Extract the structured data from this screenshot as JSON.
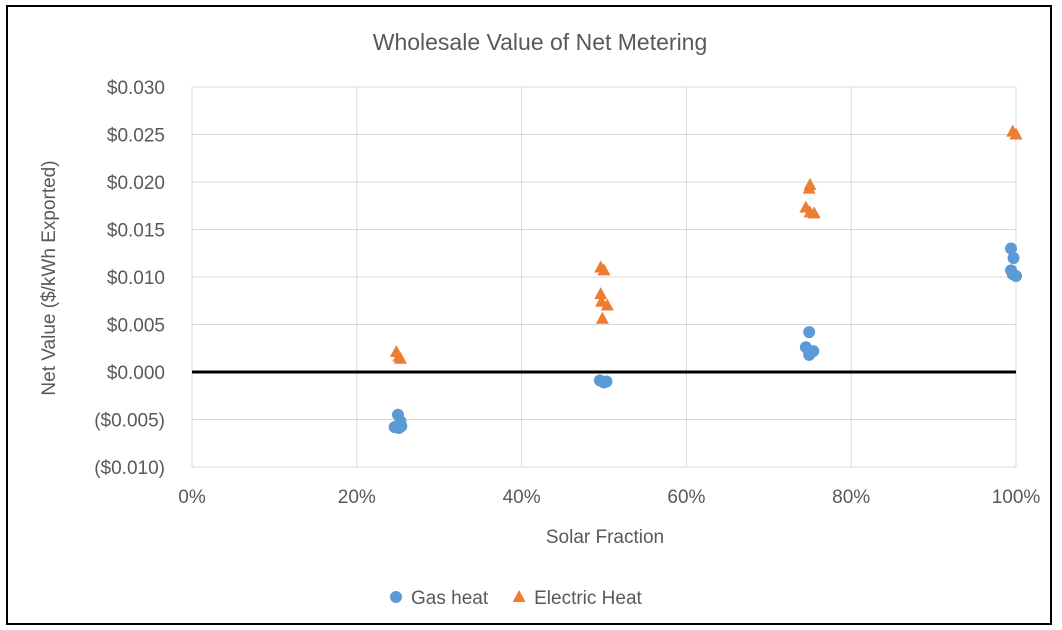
{
  "chart_data": {
    "type": "scatter",
    "title": "Wholesale Value of Net Metering",
    "xlabel": "Solar Fraction",
    "ylabel": "Net Value ($/kWh Exported)",
    "xlim": [
      0,
      1
    ],
    "ylim": [
      -0.01,
      0.03
    ],
    "x_ticks": [
      0,
      0.2,
      0.4,
      0.6,
      0.8,
      1.0
    ],
    "x_tick_labels": [
      "0%",
      "20%",
      "40%",
      "60%",
      "80%",
      "100%"
    ],
    "y_ticks": [
      0.03,
      0.025,
      0.02,
      0.015,
      0.01,
      0.005,
      0.0,
      -0.005,
      -0.01
    ],
    "y_tick_labels": [
      "$0.030",
      "$0.025",
      "$0.020",
      "$0.015",
      "$0.010",
      "$0.005",
      "$0.000",
      "($0.005)",
      "($0.010)"
    ],
    "negative_tick_color": "#ff0000",
    "tick_color": "#595959",
    "grid": true,
    "zero_line": true,
    "legend_position": "bottom",
    "series": [
      {
        "name": "Gas heat",
        "marker": "circle",
        "color": "#5b9bd5",
        "points": [
          {
            "x": 0.25,
            "y": -0.0045
          },
          {
            "x": 0.253,
            "y": -0.0052
          },
          {
            "x": 0.246,
            "y": -0.0058
          },
          {
            "x": 0.251,
            "y": -0.0059
          },
          {
            "x": 0.254,
            "y": -0.0057
          },
          {
            "x": 0.495,
            "y": -0.0009
          },
          {
            "x": 0.5,
            "y": -0.0011
          },
          {
            "x": 0.503,
            "y": -0.001
          },
          {
            "x": 0.749,
            "y": 0.0042
          },
          {
            "x": 0.745,
            "y": 0.0026
          },
          {
            "x": 0.754,
            "y": 0.0022
          },
          {
            "x": 0.749,
            "y": 0.0018
          },
          {
            "x": 0.994,
            "y": 0.013
          },
          {
            "x": 0.997,
            "y": 0.012
          },
          {
            "x": 0.994,
            "y": 0.0107
          },
          {
            "x": 0.996,
            "y": 0.0103
          },
          {
            "x": 1.0,
            "y": 0.0101
          }
        ]
      },
      {
        "name": "Electric Heat",
        "marker": "triangle",
        "color": "#ed7d31",
        "points": [
          {
            "x": 0.248,
            "y": 0.0021
          },
          {
            "x": 0.251,
            "y": 0.0016
          },
          {
            "x": 0.253,
            "y": 0.0014
          },
          {
            "x": 0.496,
            "y": 0.011
          },
          {
            "x": 0.5,
            "y": 0.0107
          },
          {
            "x": 0.496,
            "y": 0.0082
          },
          {
            "x": 0.497,
            "y": 0.0074
          },
          {
            "x": 0.504,
            "y": 0.007
          },
          {
            "x": 0.498,
            "y": 0.0056
          },
          {
            "x": 0.75,
            "y": 0.0197
          },
          {
            "x": 0.749,
            "y": 0.0193
          },
          {
            "x": 0.745,
            "y": 0.0173
          },
          {
            "x": 0.75,
            "y": 0.0168
          },
          {
            "x": 0.755,
            "y": 0.0167
          },
          {
            "x": 0.996,
            "y": 0.0253
          },
          {
            "x": 1.0,
            "y": 0.025
          }
        ]
      }
    ]
  }
}
